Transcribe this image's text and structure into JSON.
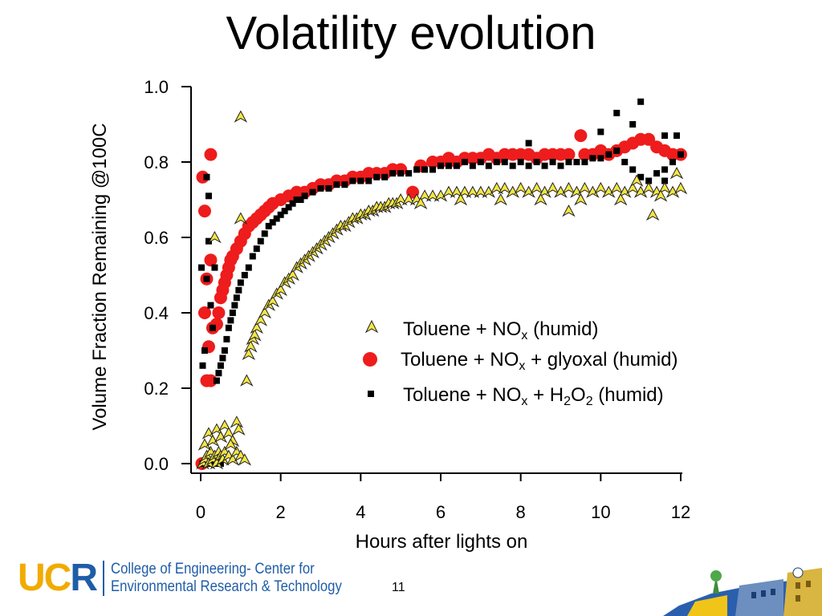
{
  "slide": {
    "title": "Volatility evolution",
    "page_number": "11"
  },
  "footer": {
    "logo_letters": [
      "U",
      "C",
      "R"
    ],
    "college_line1": "College of Engineering- Center for",
    "college_line2": "Environmental Research & Technology"
  },
  "chart_data": {
    "type": "scatter",
    "xlabel": "Hours after lights on",
    "ylabel": "Volume Fraction Remaining @100C",
    "xlim": [
      0,
      12
    ],
    "ylim": [
      0,
      1.0
    ],
    "xticks": [
      "0",
      "2",
      "4",
      "6",
      "8",
      "10",
      "12"
    ],
    "yticks": [
      "0.0",
      "0.2",
      "0.4",
      "0.6",
      "0.8",
      "1.0"
    ],
    "grid": false,
    "legend_position": "center-right",
    "series": [
      {
        "label_main": "Toluene + NO",
        "label_sub": "x",
        "label_rest": " (humid)",
        "marker": "triangle",
        "color": "#f5e642",
        "stroke": "#222222",
        "points": [
          [
            0.05,
            0.0
          ],
          [
            0.1,
            0.01
          ],
          [
            0.15,
            0.02
          ],
          [
            0.2,
            0.0
          ],
          [
            0.25,
            0.03
          ],
          [
            0.3,
            0.01
          ],
          [
            0.35,
            0.02
          ],
          [
            0.4,
            0.0
          ],
          [
            0.45,
            0.03
          ],
          [
            0.5,
            0.02
          ],
          [
            0.55,
            0.01
          ],
          [
            0.6,
            0.03
          ],
          [
            0.7,
            0.02
          ],
          [
            0.8,
            0.01
          ],
          [
            0.9,
            0.03
          ],
          [
            1.0,
            0.02
          ],
          [
            1.1,
            0.01
          ],
          [
            0.1,
            0.05
          ],
          [
            0.2,
            0.08
          ],
          [
            0.3,
            0.06
          ],
          [
            0.4,
            0.09
          ],
          [
            0.5,
            0.07
          ],
          [
            0.6,
            0.1
          ],
          [
            0.7,
            0.08
          ],
          [
            0.8,
            0.06
          ],
          [
            0.9,
            0.11
          ],
          [
            0.95,
            0.09
          ],
          [
            0.75,
            0.05
          ],
          [
            0.35,
            0.6
          ],
          [
            1.0,
            0.65
          ],
          [
            1.0,
            0.92
          ],
          [
            1.15,
            0.22
          ],
          [
            1.2,
            0.29
          ],
          [
            1.25,
            0.31
          ],
          [
            1.3,
            0.33
          ],
          [
            1.35,
            0.34
          ],
          [
            1.4,
            0.36
          ],
          [
            1.5,
            0.38
          ],
          [
            1.6,
            0.4
          ],
          [
            1.7,
            0.42
          ],
          [
            1.8,
            0.43
          ],
          [
            1.9,
            0.45
          ],
          [
            2.0,
            0.46
          ],
          [
            2.1,
            0.48
          ],
          [
            2.2,
            0.49
          ],
          [
            2.3,
            0.5
          ],
          [
            2.4,
            0.52
          ],
          [
            2.5,
            0.53
          ],
          [
            2.6,
            0.54
          ],
          [
            2.7,
            0.55
          ],
          [
            2.8,
            0.56
          ],
          [
            2.9,
            0.57
          ],
          [
            3.0,
            0.58
          ],
          [
            3.1,
            0.59
          ],
          [
            3.2,
            0.6
          ],
          [
            3.3,
            0.61
          ],
          [
            3.4,
            0.62
          ],
          [
            3.5,
            0.63
          ],
          [
            3.6,
            0.63
          ],
          [
            3.7,
            0.64
          ],
          [
            3.8,
            0.65
          ],
          [
            3.9,
            0.65
          ],
          [
            4.0,
            0.66
          ],
          [
            4.1,
            0.66
          ],
          [
            4.2,
            0.67
          ],
          [
            4.3,
            0.67
          ],
          [
            4.4,
            0.68
          ],
          [
            4.5,
            0.68
          ],
          [
            4.6,
            0.68
          ],
          [
            4.7,
            0.69
          ],
          [
            4.8,
            0.69
          ],
          [
            4.9,
            0.69
          ],
          [
            5.0,
            0.7
          ],
          [
            5.2,
            0.7
          ],
          [
            5.4,
            0.7
          ],
          [
            5.6,
            0.71
          ],
          [
            5.8,
            0.71
          ],
          [
            6.0,
            0.71
          ],
          [
            6.2,
            0.72
          ],
          [
            6.4,
            0.72
          ],
          [
            6.6,
            0.72
          ],
          [
            6.8,
            0.72
          ],
          [
            7.0,
            0.72
          ],
          [
            7.2,
            0.72
          ],
          [
            7.4,
            0.73
          ],
          [
            7.6,
            0.73
          ],
          [
            7.8,
            0.72
          ],
          [
            8.0,
            0.73
          ],
          [
            8.2,
            0.72
          ],
          [
            8.4,
            0.73
          ],
          [
            8.6,
            0.72
          ],
          [
            8.8,
            0.73
          ],
          [
            9.0,
            0.72
          ],
          [
            9.2,
            0.73
          ],
          [
            9.4,
            0.72
          ],
          [
            9.6,
            0.73
          ],
          [
            9.8,
            0.72
          ],
          [
            10.0,
            0.73
          ],
          [
            10.2,
            0.72
          ],
          [
            10.4,
            0.73
          ],
          [
            10.6,
            0.72
          ],
          [
            10.8,
            0.73
          ],
          [
            11.0,
            0.72
          ],
          [
            11.2,
            0.73
          ],
          [
            11.4,
            0.72
          ],
          [
            11.6,
            0.73
          ],
          [
            11.8,
            0.72
          ],
          [
            12.0,
            0.73
          ],
          [
            5.5,
            0.69
          ],
          [
            6.5,
            0.7
          ],
          [
            7.5,
            0.7
          ],
          [
            8.5,
            0.7
          ],
          [
            9.5,
            0.7
          ],
          [
            10.5,
            0.7
          ],
          [
            11.5,
            0.71
          ],
          [
            9.2,
            0.67
          ],
          [
            11.3,
            0.66
          ],
          [
            10.9,
            0.75
          ],
          [
            11.9,
            0.77
          ]
        ]
      },
      {
        "label_main": "Toluene + NO",
        "label_sub": "x",
        "label_rest": " + glyoxal (humid)",
        "marker": "circle",
        "color": "#ee1c1c",
        "stroke": "#ee1c1c",
        "points": [
          [
            0.03,
            0.0
          ],
          [
            0.05,
            0.76
          ],
          [
            0.1,
            0.67
          ],
          [
            0.1,
            0.4
          ],
          [
            0.15,
            0.49
          ],
          [
            0.15,
            0.22
          ],
          [
            0.2,
            0.31
          ],
          [
            0.25,
            0.54
          ],
          [
            0.25,
            0.82
          ],
          [
            0.25,
            0.22
          ],
          [
            0.3,
            0.36
          ],
          [
            0.4,
            0.37
          ],
          [
            0.45,
            0.4
          ],
          [
            0.5,
            0.44
          ],
          [
            0.55,
            0.46
          ],
          [
            0.6,
            0.48
          ],
          [
            0.65,
            0.5
          ],
          [
            0.7,
            0.52
          ],
          [
            0.75,
            0.54
          ],
          [
            0.8,
            0.55
          ],
          [
            0.9,
            0.57
          ],
          [
            1.0,
            0.59
          ],
          [
            1.1,
            0.61
          ],
          [
            1.2,
            0.63
          ],
          [
            1.3,
            0.64
          ],
          [
            1.4,
            0.65
          ],
          [
            1.5,
            0.66
          ],
          [
            1.6,
            0.67
          ],
          [
            1.7,
            0.68
          ],
          [
            1.8,
            0.69
          ],
          [
            2.0,
            0.7
          ],
          [
            2.2,
            0.71
          ],
          [
            2.4,
            0.72
          ],
          [
            2.6,
            0.72
          ],
          [
            2.8,
            0.73
          ],
          [
            3.0,
            0.74
          ],
          [
            3.2,
            0.74
          ],
          [
            3.4,
            0.75
          ],
          [
            3.6,
            0.75
          ],
          [
            3.8,
            0.76
          ],
          [
            4.0,
            0.76
          ],
          [
            4.2,
            0.77
          ],
          [
            4.4,
            0.77
          ],
          [
            4.6,
            0.77
          ],
          [
            4.8,
            0.78
          ],
          [
            5.0,
            0.78
          ],
          [
            5.3,
            0.72
          ],
          [
            5.5,
            0.79
          ],
          [
            5.8,
            0.8
          ],
          [
            6.0,
            0.8
          ],
          [
            6.2,
            0.81
          ],
          [
            6.4,
            0.8
          ],
          [
            6.6,
            0.81
          ],
          [
            6.8,
            0.81
          ],
          [
            7.0,
            0.81
          ],
          [
            7.2,
            0.82
          ],
          [
            7.4,
            0.81
          ],
          [
            7.6,
            0.82
          ],
          [
            7.8,
            0.82
          ],
          [
            8.0,
            0.82
          ],
          [
            8.2,
            0.82
          ],
          [
            8.4,
            0.81
          ],
          [
            8.6,
            0.82
          ],
          [
            8.8,
            0.82
          ],
          [
            9.0,
            0.82
          ],
          [
            9.2,
            0.82
          ],
          [
            9.5,
            0.87
          ],
          [
            9.6,
            0.82
          ],
          [
            9.8,
            0.82
          ],
          [
            10.0,
            0.83
          ],
          [
            10.2,
            0.82
          ],
          [
            10.4,
            0.83
          ],
          [
            10.6,
            0.84
          ],
          [
            10.8,
            0.85
          ],
          [
            11.0,
            0.86
          ],
          [
            11.2,
            0.86
          ],
          [
            11.4,
            0.84
          ],
          [
            11.6,
            0.83
          ],
          [
            11.8,
            0.82
          ],
          [
            12.0,
            0.82
          ]
        ]
      },
      {
        "label_main": "Toluene + NO",
        "label_sub": "x",
        "label_rest": " + H",
        "label_sub2": "2",
        "label_rest2": "O",
        "label_sub3": "2",
        "label_rest3": " (humid)",
        "marker": "square",
        "color": "#000000",
        "stroke": "#000000",
        "points": [
          [
            0.02,
            0.52
          ],
          [
            0.05,
            0.26
          ],
          [
            0.1,
            0.3
          ],
          [
            0.15,
            0.76
          ],
          [
            0.2,
            0.71
          ],
          [
            0.25,
            0.42
          ],
          [
            0.3,
            0.36
          ],
          [
            0.35,
            0.52
          ],
          [
            0.2,
            0.59
          ],
          [
            0.15,
            0.49
          ],
          [
            0.05,
            0.0
          ],
          [
            0.1,
            0.0
          ],
          [
            0.2,
            0.0
          ],
          [
            0.3,
            0.0
          ],
          [
            0.4,
            0.0
          ],
          [
            0.5,
            0.0
          ],
          [
            0.4,
            0.22
          ],
          [
            0.45,
            0.24
          ],
          [
            0.5,
            0.26
          ],
          [
            0.55,
            0.28
          ],
          [
            0.6,
            0.3
          ],
          [
            0.65,
            0.33
          ],
          [
            0.7,
            0.36
          ],
          [
            0.75,
            0.38
          ],
          [
            0.8,
            0.4
          ],
          [
            0.85,
            0.42
          ],
          [
            0.9,
            0.44
          ],
          [
            0.95,
            0.46
          ],
          [
            1.0,
            0.48
          ],
          [
            1.1,
            0.5
          ],
          [
            1.2,
            0.52
          ],
          [
            1.3,
            0.55
          ],
          [
            1.4,
            0.57
          ],
          [
            1.5,
            0.59
          ],
          [
            1.6,
            0.61
          ],
          [
            1.7,
            0.63
          ],
          [
            1.8,
            0.64
          ],
          [
            1.9,
            0.65
          ],
          [
            2.0,
            0.66
          ],
          [
            2.1,
            0.67
          ],
          [
            2.2,
            0.68
          ],
          [
            2.3,
            0.69
          ],
          [
            2.4,
            0.7
          ],
          [
            2.5,
            0.7
          ],
          [
            2.6,
            0.71
          ],
          [
            2.8,
            0.72
          ],
          [
            3.0,
            0.73
          ],
          [
            3.2,
            0.73
          ],
          [
            3.4,
            0.74
          ],
          [
            3.6,
            0.74
          ],
          [
            3.8,
            0.75
          ],
          [
            4.0,
            0.75
          ],
          [
            4.2,
            0.75
          ],
          [
            4.4,
            0.76
          ],
          [
            4.6,
            0.76
          ],
          [
            4.8,
            0.77
          ],
          [
            5.0,
            0.77
          ],
          [
            5.2,
            0.77
          ],
          [
            5.4,
            0.78
          ],
          [
            5.6,
            0.78
          ],
          [
            5.8,
            0.78
          ],
          [
            6.0,
            0.79
          ],
          [
            6.2,
            0.79
          ],
          [
            6.4,
            0.79
          ],
          [
            6.6,
            0.8
          ],
          [
            6.8,
            0.79
          ],
          [
            7.0,
            0.8
          ],
          [
            7.2,
            0.79
          ],
          [
            7.4,
            0.8
          ],
          [
            7.6,
            0.8
          ],
          [
            7.8,
            0.79
          ],
          [
            8.0,
            0.8
          ],
          [
            8.2,
            0.79
          ],
          [
            8.4,
            0.8
          ],
          [
            8.6,
            0.79
          ],
          [
            8.8,
            0.8
          ],
          [
            9.0,
            0.79
          ],
          [
            9.2,
            0.8
          ],
          [
            9.4,
            0.8
          ],
          [
            9.6,
            0.8
          ],
          [
            9.8,
            0.81
          ],
          [
            10.0,
            0.81
          ],
          [
            10.2,
            0.82
          ],
          [
            10.4,
            0.83
          ],
          [
            10.6,
            0.8
          ],
          [
            10.8,
            0.78
          ],
          [
            11.0,
            0.76
          ],
          [
            11.2,
            0.75
          ],
          [
            11.4,
            0.77
          ],
          [
            11.6,
            0.78
          ],
          [
            11.8,
            0.8
          ],
          [
            12.0,
            0.82
          ],
          [
            8.2,
            0.85
          ],
          [
            10.0,
            0.88
          ],
          [
            10.4,
            0.93
          ],
          [
            11.0,
            0.96
          ],
          [
            10.8,
            0.9
          ],
          [
            11.6,
            0.87
          ],
          [
            11.9,
            0.87
          ],
          [
            11.6,
            0.75
          ]
        ]
      }
    ]
  }
}
